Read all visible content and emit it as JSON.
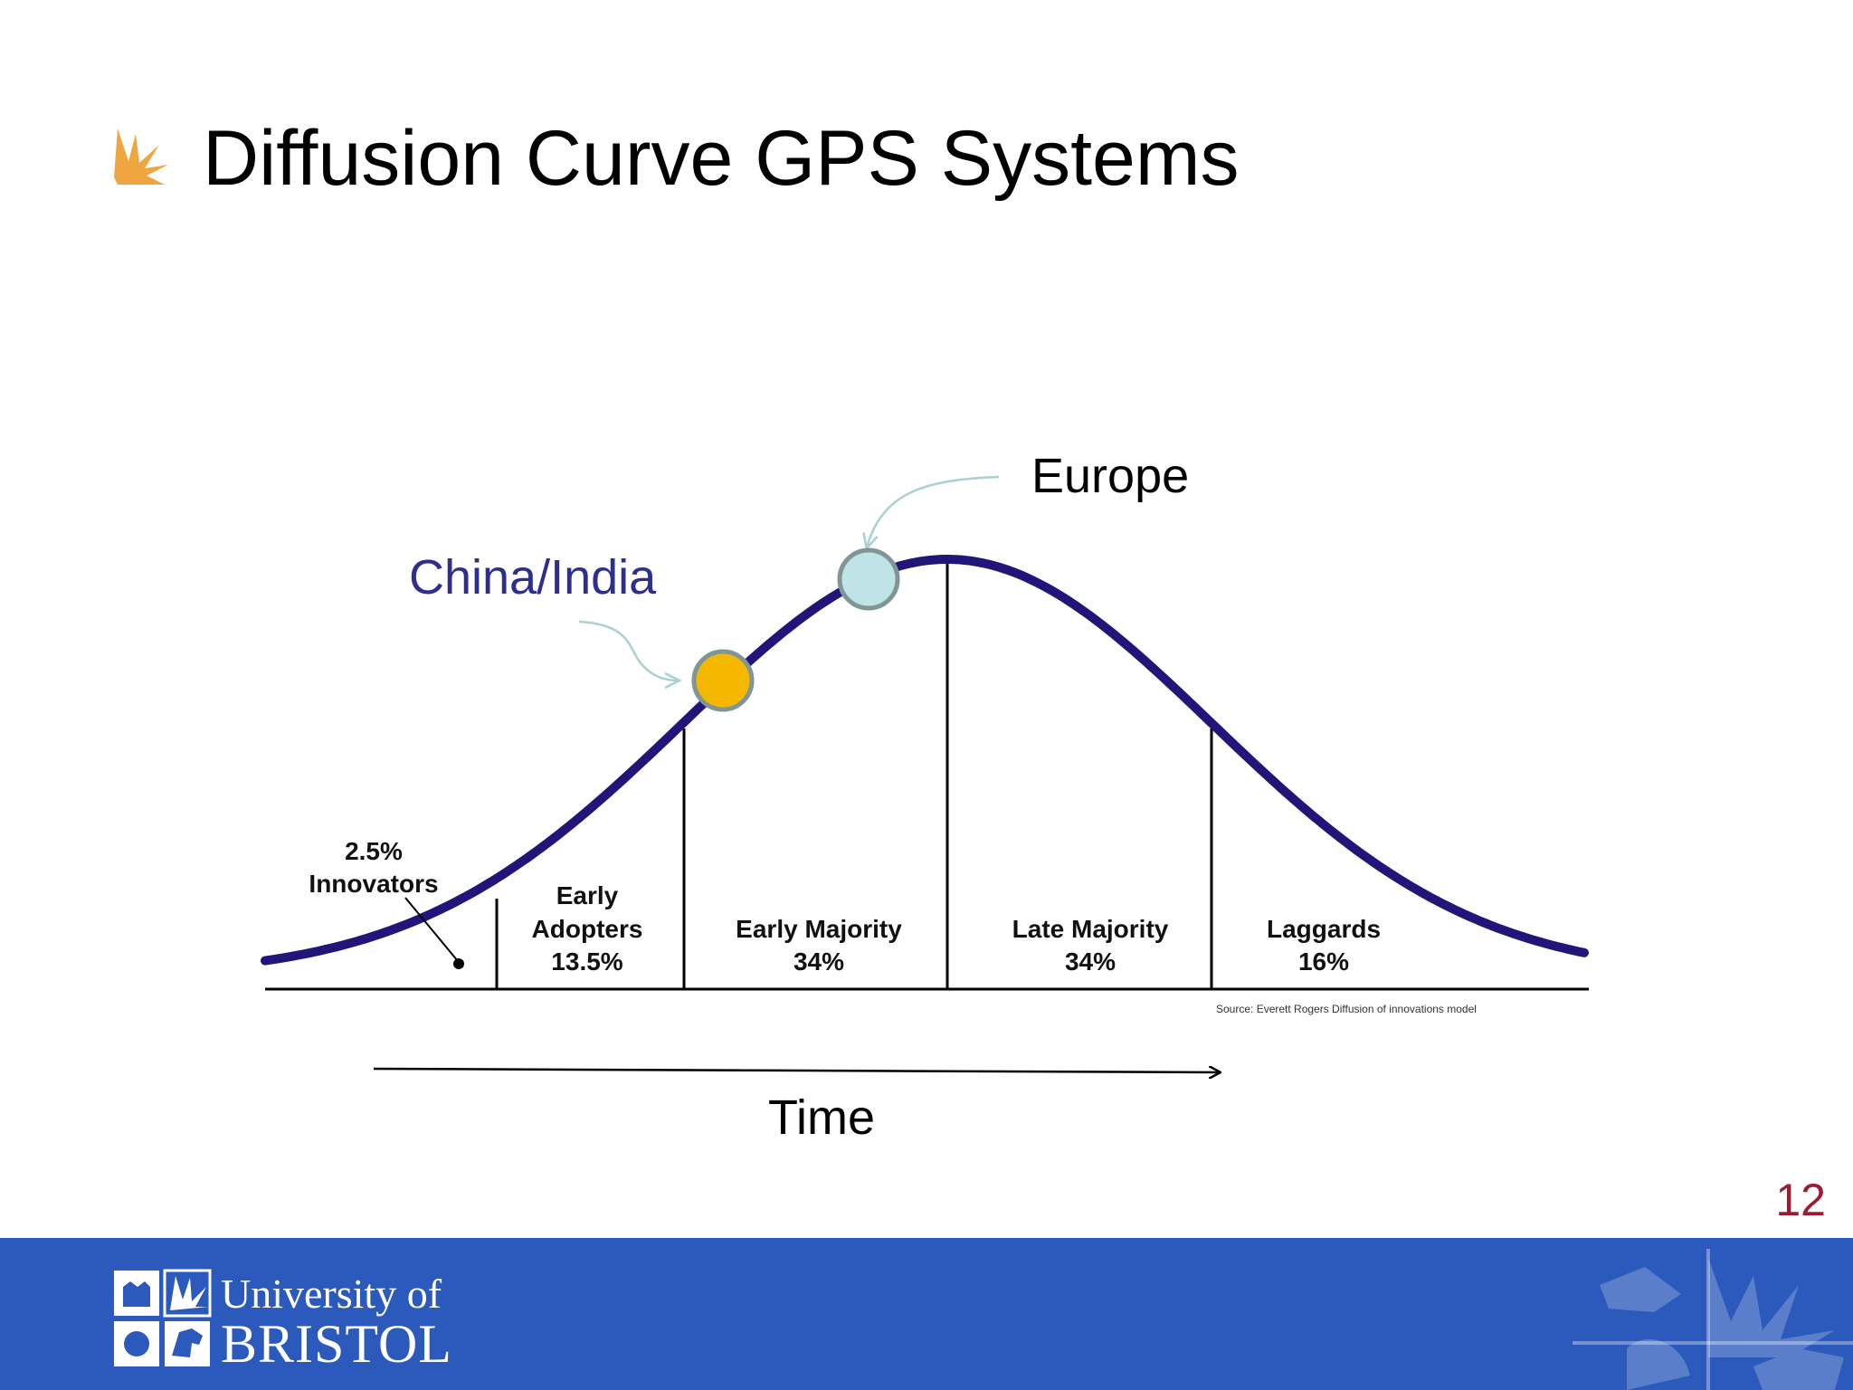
{
  "slide": {
    "title": "Diffusion Curve GPS Systems",
    "page_number": "12",
    "colors": {
      "background": "#ffffff",
      "footer": "#2b5abc",
      "curve": "#22157a",
      "china_marker": "#f5b800",
      "europe_marker": "#bfe3e6",
      "marker_outline": "#7f9596",
      "callout_arrow": "#a9d1cf",
      "page_number": "#9e1b32",
      "china_label": "#2e2e8f",
      "bullet": "#f0a640"
    },
    "icons": {
      "bullet": "flame-bullet-icon",
      "crest": "university-crest-icon"
    }
  },
  "diagram": {
    "annotations": {
      "china_india": "China/India",
      "europe": "Europe",
      "time_label": "Time",
      "source": "Source: Everett Rogers Diffusion of innovations model"
    },
    "segments": [
      {
        "name": "Innovators",
        "percent": "2.5%",
        "share": 2.5
      },
      {
        "name": "Early Adopters",
        "percent": "13.5%",
        "share": 13.5
      },
      {
        "name": "Early Majority",
        "percent": "34%",
        "share": 34
      },
      {
        "name": "Late Majority",
        "percent": "34%",
        "share": 34
      },
      {
        "name": "Laggards",
        "percent": "16%",
        "share": 16
      }
    ],
    "segment_labels": {
      "innovators": [
        "2.5%",
        "Innovators"
      ],
      "early_adopters": [
        "Early",
        "Adopters",
        "13.5%"
      ],
      "early_majority": [
        "Early Majority",
        "34%"
      ],
      "late_majority": [
        "Late Majority",
        "34%"
      ],
      "laggards": [
        "Laggards",
        "16%"
      ]
    }
  },
  "footer": {
    "logo_line1": "University of",
    "logo_line2": "BRISTOL"
  }
}
